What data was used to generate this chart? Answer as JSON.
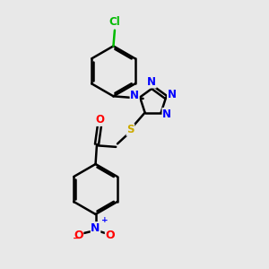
{
  "background_color": "#e8e8e8",
  "bond_color": "#000000",
  "N_color": "#0000ff",
  "O_color": "#ff0000",
  "S_color": "#ccaa00",
  "Cl_color": "#00bb00",
  "line_width": 1.8,
  "font_size": 8.5,
  "figsize": [
    3.0,
    3.0
  ],
  "dpi": 100,
  "xlim": [
    0,
    10
  ],
  "ylim": [
    0,
    10
  ]
}
